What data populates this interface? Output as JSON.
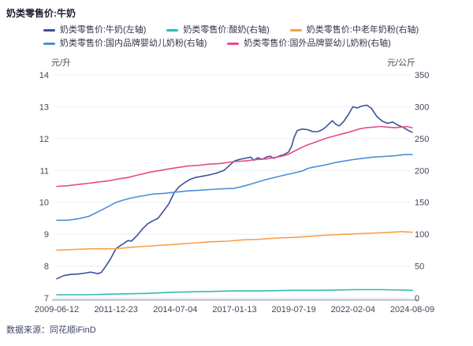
{
  "title": "奶类零售价:牛奶",
  "footer": {
    "source_label": "数据来源：同花顺iFinD"
  },
  "chart_data": {
    "type": "line",
    "title": "奶类零售价:牛奶",
    "grid": true,
    "legend_position": "top",
    "legend_rows": [
      [
        0,
        1,
        2
      ],
      [
        3,
        4
      ]
    ],
    "left_axis": {
      "unit": "元/升",
      "min": 7,
      "max": 14,
      "ticks": [
        14,
        13,
        12,
        11,
        10,
        9,
        8,
        7
      ]
    },
    "right_axis": {
      "unit": "元/公斤",
      "min": 0,
      "max": 350,
      "ticks": [
        350,
        300,
        250,
        200,
        150,
        100,
        50,
        0
      ]
    },
    "x_ticks": [
      "2009-06-12",
      "2011-12-23",
      "2014-07-04",
      "2017-01-13",
      "2019-07-19",
      "2022-02-04",
      "2024-08-09"
    ],
    "series": [
      {
        "name": "奶类零售价:牛奶(左轴)",
        "axis": "left",
        "color": "#3C4F9C",
        "points": [
          [
            0,
            7.6
          ],
          [
            0.02,
            7.7
          ],
          [
            0.04,
            7.74
          ],
          [
            0.06,
            7.75
          ],
          [
            0.08,
            7.78
          ],
          [
            0.095,
            7.81
          ],
          [
            0.105,
            7.79
          ],
          [
            0.115,
            7.76
          ],
          [
            0.125,
            7.8
          ],
          [
            0.135,
            7.95
          ],
          [
            0.15,
            8.2
          ],
          [
            0.167,
            8.55
          ],
          [
            0.18,
            8.65
          ],
          [
            0.19,
            8.72
          ],
          [
            0.2,
            8.8
          ],
          [
            0.21,
            8.78
          ],
          [
            0.225,
            8.95
          ],
          [
            0.24,
            9.15
          ],
          [
            0.255,
            9.32
          ],
          [
            0.27,
            9.42
          ],
          [
            0.285,
            9.5
          ],
          [
            0.3,
            9.72
          ],
          [
            0.315,
            9.95
          ],
          [
            0.33,
            10.3
          ],
          [
            0.345,
            10.5
          ],
          [
            0.36,
            10.62
          ],
          [
            0.375,
            10.72
          ],
          [
            0.39,
            10.78
          ],
          [
            0.41,
            10.82
          ],
          [
            0.43,
            10.86
          ],
          [
            0.45,
            10.92
          ],
          [
            0.47,
            11.0
          ],
          [
            0.485,
            11.15
          ],
          [
            0.5,
            11.3
          ],
          [
            0.515,
            11.35
          ],
          [
            0.53,
            11.38
          ],
          [
            0.545,
            11.42
          ],
          [
            0.555,
            11.32
          ],
          [
            0.565,
            11.4
          ],
          [
            0.578,
            11.35
          ],
          [
            0.59,
            11.42
          ],
          [
            0.6,
            11.45
          ],
          [
            0.61,
            11.38
          ],
          [
            0.625,
            11.45
          ],
          [
            0.64,
            11.5
          ],
          [
            0.652,
            11.58
          ],
          [
            0.66,
            11.75
          ],
          [
            0.668,
            12.05
          ],
          [
            0.676,
            12.25
          ],
          [
            0.69,
            12.3
          ],
          [
            0.705,
            12.28
          ],
          [
            0.72,
            12.22
          ],
          [
            0.735,
            12.22
          ],
          [
            0.75,
            12.3
          ],
          [
            0.765,
            12.45
          ],
          [
            0.775,
            12.56
          ],
          [
            0.785,
            12.45
          ],
          [
            0.795,
            12.4
          ],
          [
            0.808,
            12.55
          ],
          [
            0.82,
            12.75
          ],
          [
            0.833,
            13.0
          ],
          [
            0.845,
            12.96
          ],
          [
            0.858,
            13.02
          ],
          [
            0.872,
            13.05
          ],
          [
            0.885,
            12.95
          ],
          [
            0.9,
            12.7
          ],
          [
            0.915,
            12.55
          ],
          [
            0.93,
            12.48
          ],
          [
            0.945,
            12.52
          ],
          [
            0.96,
            12.42
          ],
          [
            0.975,
            12.35
          ],
          [
            0.99,
            12.25
          ],
          [
            1,
            12.2
          ]
        ]
      },
      {
        "name": "奶类零售价:酸奶(右轴)",
        "axis": "right",
        "color": "#2FBDB0",
        "points": [
          [
            0,
            5
          ],
          [
            0.08,
            5
          ],
          [
            0.167,
            6
          ],
          [
            0.25,
            7
          ],
          [
            0.333,
            9
          ],
          [
            0.42,
            10
          ],
          [
            0.5,
            11
          ],
          [
            0.58,
            11
          ],
          [
            0.667,
            12
          ],
          [
            0.75,
            12
          ],
          [
            0.833,
            13
          ],
          [
            0.92,
            13
          ],
          [
            1,
            12
          ]
        ]
      },
      {
        "name": "奶类零售价:中老年奶粉(右轴)",
        "axis": "right",
        "color": "#F7A049",
        "points": [
          [
            0,
            75
          ],
          [
            0.05,
            76
          ],
          [
            0.1,
            77
          ],
          [
            0.14,
            77
          ],
          [
            0.167,
            77
          ],
          [
            0.2,
            79
          ],
          [
            0.25,
            81
          ],
          [
            0.3,
            83
          ],
          [
            0.333,
            84
          ],
          [
            0.38,
            86
          ],
          [
            0.43,
            88
          ],
          [
            0.48,
            89
          ],
          [
            0.52,
            91
          ],
          [
            0.57,
            92
          ],
          [
            0.62,
            94
          ],
          [
            0.667,
            95
          ],
          [
            0.72,
            97
          ],
          [
            0.77,
            99
          ],
          [
            0.82,
            100
          ],
          [
            0.86,
            101
          ],
          [
            0.9,
            102
          ],
          [
            0.94,
            103
          ],
          [
            0.97,
            104
          ],
          [
            1,
            103
          ]
        ]
      },
      {
        "name": "奶类零售价:国内品牌婴幼儿奶粉(右轴)",
        "axis": "right",
        "color": "#4D8ED8",
        "points": [
          [
            0,
            122
          ],
          [
            0.03,
            122
          ],
          [
            0.06,
            124
          ],
          [
            0.09,
            128
          ],
          [
            0.12,
            136
          ],
          [
            0.15,
            145
          ],
          [
            0.167,
            150
          ],
          [
            0.19,
            154
          ],
          [
            0.21,
            157
          ],
          [
            0.24,
            160
          ],
          [
            0.27,
            163
          ],
          [
            0.3,
            164
          ],
          [
            0.333,
            166
          ],
          [
            0.37,
            168
          ],
          [
            0.4,
            169
          ],
          [
            0.43,
            170
          ],
          [
            0.46,
            171
          ],
          [
            0.5,
            172
          ],
          [
            0.53,
            176
          ],
          [
            0.56,
            181
          ],
          [
            0.59,
            186
          ],
          [
            0.62,
            190
          ],
          [
            0.65,
            194
          ],
          [
            0.667,
            196
          ],
          [
            0.69,
            199
          ],
          [
            0.705,
            203
          ],
          [
            0.72,
            205
          ],
          [
            0.75,
            208
          ],
          [
            0.78,
            212
          ],
          [
            0.81,
            215
          ],
          [
            0.833,
            217
          ],
          [
            0.86,
            219
          ],
          [
            0.89,
            221
          ],
          [
            0.92,
            222
          ],
          [
            0.95,
            223
          ],
          [
            0.98,
            225
          ],
          [
            1,
            225
          ]
        ]
      },
      {
        "name": "奶类零售价:国外品牌婴幼儿奶粉(右轴)",
        "axis": "right",
        "color": "#E8498B",
        "points": [
          [
            0,
            175
          ],
          [
            0.03,
            176
          ],
          [
            0.06,
            178
          ],
          [
            0.09,
            180
          ],
          [
            0.12,
            182
          ],
          [
            0.15,
            184
          ],
          [
            0.167,
            186
          ],
          [
            0.2,
            189
          ],
          [
            0.23,
            193
          ],
          [
            0.26,
            197
          ],
          [
            0.29,
            200
          ],
          [
            0.31,
            202
          ],
          [
            0.333,
            204
          ],
          [
            0.37,
            207
          ],
          [
            0.4,
            208
          ],
          [
            0.43,
            210
          ],
          [
            0.46,
            211
          ],
          [
            0.5,
            214
          ],
          [
            0.53,
            215
          ],
          [
            0.56,
            217
          ],
          [
            0.59,
            218
          ],
          [
            0.61,
            220
          ],
          [
            0.63,
            222
          ],
          [
            0.65,
            225
          ],
          [
            0.667,
            230
          ],
          [
            0.685,
            235
          ],
          [
            0.7,
            239
          ],
          [
            0.72,
            243
          ],
          [
            0.74,
            247
          ],
          [
            0.76,
            251
          ],
          [
            0.78,
            254
          ],
          [
            0.8,
            257
          ],
          [
            0.82,
            260
          ],
          [
            0.833,
            262
          ],
          [
            0.85,
            265
          ],
          [
            0.87,
            267
          ],
          [
            0.89,
            268
          ],
          [
            0.91,
            269
          ],
          [
            0.93,
            268
          ],
          [
            0.95,
            267
          ],
          [
            0.97,
            268
          ],
          [
            0.985,
            269
          ],
          [
            1,
            267
          ]
        ]
      }
    ],
    "style": {
      "grid_color": "#ECECF4",
      "axis_line_color": "#B9BFD1",
      "tick_color": "#45455A"
    }
  }
}
